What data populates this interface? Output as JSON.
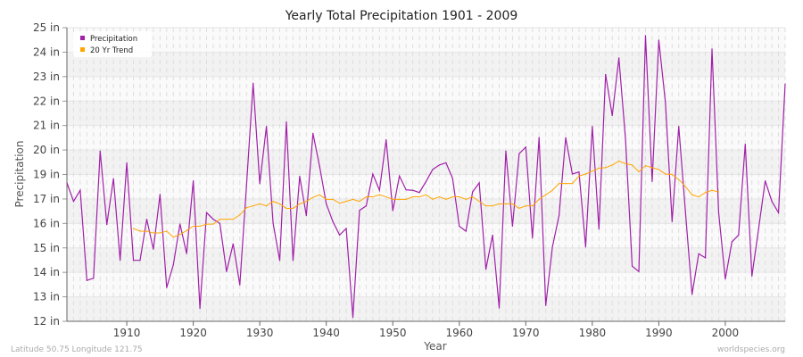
{
  "chart_data": {
    "type": "line",
    "title": "Yearly Total Precipitation 1901 - 2009",
    "xlabel": "Year",
    "ylabel": "Precipitation",
    "xlim": [
      1901,
      2009
    ],
    "ylim": [
      12,
      25
    ],
    "x_ticks": [
      1910,
      1920,
      1930,
      1940,
      1950,
      1960,
      1970,
      1980,
      1990,
      2000
    ],
    "y_tick_labels": [
      "12 in",
      "13 in",
      "14 in",
      "15 in",
      "16 in",
      "17 in",
      "19 in",
      "20 in",
      "21 in",
      "22 in",
      "23 in",
      "24 in",
      "25 in"
    ],
    "grid": true,
    "legend_position": "top-left",
    "series": [
      {
        "name": "Precipitation",
        "color": "#a020a8",
        "start_year": 1901,
        "values": [
          18.13,
          17.31,
          17.8,
          13.81,
          13.91,
          19.54,
          16.28,
          18.32,
          14.7,
          19.02,
          14.7,
          14.7,
          16.52,
          15.19,
          17.62,
          13.49,
          14.5,
          16.31,
          15.0,
          18.22,
          12.57,
          16.81,
          16.52,
          16.33,
          14.2,
          15.43,
          13.61,
          18.0,
          22.54,
          18.09,
          20.63,
          16.35,
          14.69,
          20.83,
          14.69,
          18.42,
          16.68,
          20.32,
          18.85,
          17.2,
          16.41,
          15.82,
          16.11,
          12.17,
          16.91,
          17.11,
          18.52,
          17.8,
          20.04,
          16.9,
          18.43,
          17.82,
          17.8,
          17.7,
          18.19,
          18.72,
          18.92,
          19.02,
          18.32,
          16.21,
          15.99,
          17.73,
          18.13,
          14.3,
          15.82,
          12.59,
          19.54,
          16.21,
          19.42,
          19.71,
          15.69,
          20.14,
          12.7,
          15.29,
          16.68,
          20.13,
          18.52,
          18.61,
          15.29,
          20.63,
          16.08,
          22.93,
          21.11,
          23.66,
          20.04,
          14.44,
          14.2,
          24.65,
          18.19,
          24.45,
          21.68,
          16.41,
          20.63,
          16.87,
          13.19,
          14.99,
          14.81,
          24.06,
          16.81,
          13.87,
          15.52,
          15.82,
          19.84,
          14.0,
          16.08,
          18.22,
          17.31,
          16.81,
          22.51
        ]
      },
      {
        "name": "20 Yr Trend",
        "color": "#ffa500",
        "start_year": 1911,
        "values": [
          16.11,
          15.99,
          15.99,
          15.91,
          15.91,
          15.99,
          15.73,
          15.84,
          16.02,
          16.21,
          16.21,
          16.3,
          16.3,
          16.52,
          16.52,
          16.52,
          16.71,
          17.03,
          17.11,
          17.2,
          17.11,
          17.31,
          17.2,
          17.0,
          17.0,
          17.2,
          17.31,
          17.49,
          17.6,
          17.4,
          17.4,
          17.23,
          17.31,
          17.4,
          17.31,
          17.51,
          17.51,
          17.6,
          17.51,
          17.4,
          17.4,
          17.4,
          17.51,
          17.51,
          17.6,
          17.4,
          17.51,
          17.4,
          17.51,
          17.51,
          17.4,
          17.51,
          17.31,
          17.11,
          17.11,
          17.2,
          17.2,
          17.2,
          17.0,
          17.11,
          17.11,
          17.4,
          17.6,
          17.8,
          18.1,
          18.1,
          18.1,
          18.43,
          18.52,
          18.65,
          18.78,
          18.8,
          18.92,
          19.09,
          18.98,
          18.92,
          18.62,
          18.89,
          18.8,
          18.72,
          18.52,
          18.5,
          18.28,
          17.97,
          17.6,
          17.51,
          17.7,
          17.8,
          17.73
        ]
      }
    ]
  },
  "footer": {
    "location": "Latitude 50.75 Longitude 121.75",
    "source": "worldspecies.org"
  }
}
